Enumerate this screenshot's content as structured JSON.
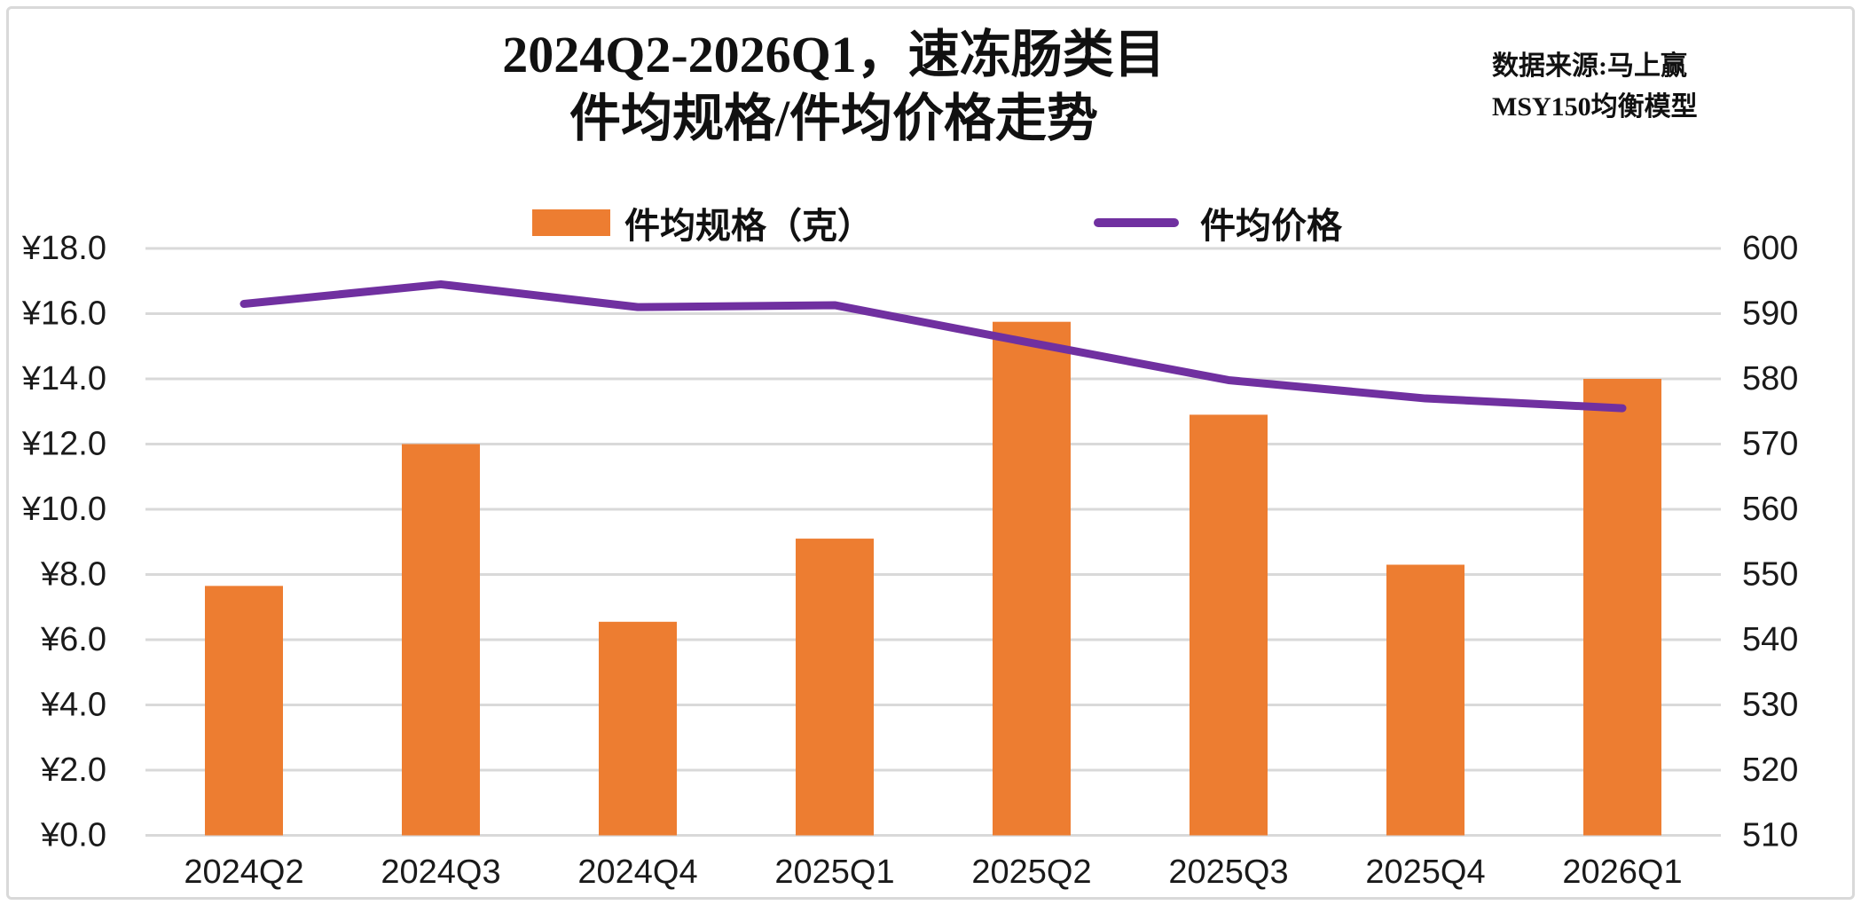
{
  "header": {
    "title_line1": "2024Q2-2026Q1，速冻肠类目",
    "title_line2": "件均规格/件均价格走势",
    "source_line1": "数据来源:马上赢",
    "source_line2": "MSY150均衡模型"
  },
  "legend": {
    "bar_label": "件均规格（克）",
    "line_label": "件均价格"
  },
  "colors": {
    "bar": "#ED7D31",
    "line": "#7030A0",
    "gridline": "#D9D9D9",
    "text": "#1A1A1A",
    "frame": "#D9D9D9",
    "background": "#FFFFFF"
  },
  "chart_data": {
    "type": "bar",
    "subtype": "combo-bar-line-dual-axis",
    "title": "2024Q2-2026Q1，速冻肠类目 件均规格/件均价格走势",
    "grid": true,
    "legend_position": "top",
    "categories": [
      "2024Q2",
      "2024Q3",
      "2024Q4",
      "2025Q1",
      "2025Q2",
      "2025Q3",
      "2025Q4",
      "2026Q1"
    ],
    "series": [
      {
        "name": "件均规格（克）",
        "type": "bar",
        "axis": "left",
        "color": "#ED7D31",
        "values": [
          7.65,
          12.0,
          6.55,
          9.1,
          15.75,
          12.9,
          8.3,
          14.0
        ]
      },
      {
        "name": "件均价格",
        "type": "line",
        "axis": "right",
        "color": "#7030A0",
        "values": [
          591.5,
          594.5,
          591.0,
          591.3,
          585.5,
          579.8,
          577.0,
          575.5
        ]
      }
    ],
    "left_axis": {
      "min": 0,
      "max": 18,
      "step": 2,
      "ticks": [
        "¥18.0",
        "¥16.0",
        "¥14.0",
        "¥12.0",
        "¥10.0",
        "¥8.0",
        "¥6.0",
        "¥4.0",
        "¥2.0",
        "¥0.0"
      ]
    },
    "right_axis": {
      "min": 510,
      "max": 600,
      "step": 10,
      "ticks": [
        "600",
        "590",
        "580",
        "570",
        "560",
        "550",
        "540",
        "530",
        "520",
        "510"
      ]
    }
  }
}
